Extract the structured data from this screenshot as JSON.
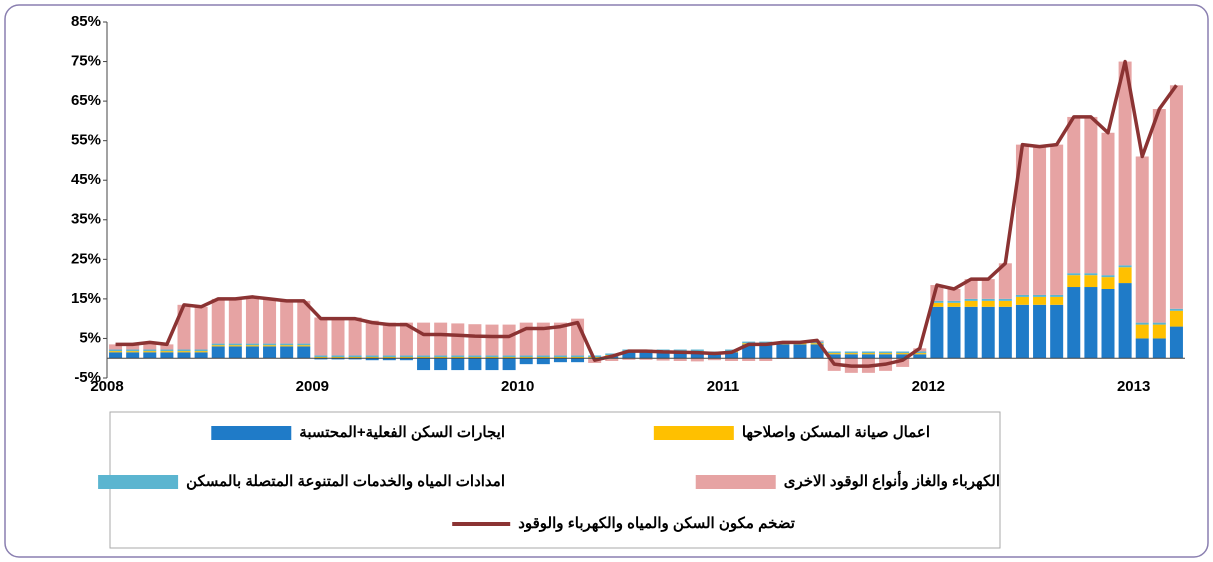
{
  "chart_data": {
    "type": "bar",
    "categories": [
      "2008",
      null,
      null,
      null,
      null,
      null,
      null,
      null,
      null,
      null,
      null,
      null,
      "2009",
      null,
      null,
      null,
      null,
      null,
      null,
      null,
      null,
      null,
      null,
      null,
      "2010",
      null,
      null,
      null,
      null,
      null,
      null,
      null,
      null,
      null,
      null,
      null,
      "2011",
      null,
      null,
      null,
      null,
      null,
      null,
      null,
      null,
      null,
      null,
      null,
      "2012",
      null,
      null,
      null,
      null,
      null,
      null,
      null,
      null,
      null,
      null,
      null,
      "2013",
      null,
      null
    ],
    "stacked": true,
    "ylim": [
      -5,
      85
    ],
    "yticks": [
      {
        "value": -5,
        "label": "-5%"
      },
      {
        "value": 5,
        "label": "5%"
      },
      {
        "value": 15,
        "label": "15%"
      },
      {
        "value": 25,
        "label": "25%"
      },
      {
        "value": 35,
        "label": "35%"
      },
      {
        "value": 45,
        "label": "45%"
      },
      {
        "value": 55,
        "label": "55%"
      },
      {
        "value": 65,
        "label": "65%"
      },
      {
        "value": 75,
        "label": "75%"
      },
      {
        "value": 85,
        "label": "85%"
      }
    ],
    "series": [
      {
        "name": "ايجارات السكن الفعلية+المحتسبة",
        "color": "#1f7bc8",
        "values": [
          1.5,
          1.5,
          1.5,
          1.5,
          1.5,
          1.5,
          3,
          3,
          3,
          3,
          3,
          3,
          -0.3,
          -0.3,
          -0.3,
          -0.5,
          -0.5,
          -0.5,
          -3,
          -3,
          -3,
          -3,
          -3,
          -3,
          -1.5,
          -1.5,
          -1,
          -1,
          0,
          0.5,
          1.5,
          1.5,
          1.5,
          1.5,
          1.5,
          1,
          1.5,
          3.5,
          3.5,
          3.5,
          3.5,
          3.5,
          1,
          1,
          1,
          1,
          1,
          1,
          13,
          13,
          13,
          13,
          13,
          13.5,
          13.5,
          13.5,
          18,
          18,
          17.5,
          19,
          5,
          5,
          8
        ]
      },
      {
        "name": "اعمال صيانة المسكن واصلاحها",
        "color": "#ffc000",
        "values": [
          0.3,
          0.3,
          0.3,
          0.3,
          0.3,
          0.3,
          0.3,
          0.3,
          0.3,
          0.3,
          0.3,
          0.3,
          0.3,
          0.3,
          0.3,
          0.3,
          0.3,
          0.3,
          0.3,
          0.3,
          0.3,
          0.3,
          0.3,
          0.3,
          0.3,
          0.3,
          0.3,
          0.3,
          0.3,
          0.3,
          0.3,
          0.3,
          0.3,
          0.3,
          0.3,
          0.3,
          0.3,
          0.3,
          0.3,
          0.3,
          0.3,
          0.3,
          0.3,
          0.3,
          0.3,
          0.3,
          0.3,
          0.3,
          1,
          1,
          1.5,
          1.5,
          1.5,
          2,
          2,
          2,
          3,
          3,
          3,
          4,
          3.5,
          3.5,
          4
        ]
      },
      {
        "name": "امدادات المياه والخدمات المتنوعة المتصلة بالمسكن",
        "color": "#5bb5d0",
        "values": [
          0.4,
          0.4,
          0.4,
          0.4,
          0.4,
          0.4,
          0.4,
          0.4,
          0.4,
          0.4,
          0.4,
          0.4,
          0.4,
          0.4,
          0.4,
          0.4,
          0.4,
          0.4,
          0.4,
          0.4,
          0.4,
          0.4,
          0.4,
          0.4,
          0.4,
          0.4,
          0.4,
          0.4,
          0.4,
          0.4,
          0.4,
          0.4,
          0.4,
          0.4,
          0.4,
          0.4,
          0.4,
          0.4,
          0.4,
          0.4,
          0.4,
          0.4,
          0.4,
          0.4,
          0.4,
          0.4,
          0.4,
          0.4,
          0.5,
          0.5,
          0.5,
          0.5,
          0.5,
          0.5,
          0.5,
          0.5,
          0.5,
          0.5,
          0.5,
          0.5,
          0.5,
          0.5,
          0.5
        ]
      },
      {
        "name": "الكهرباء والغاز وأنواع الوقود الاخرى",
        "color": "#e6a3a3",
        "values": [
          1.3,
          1.3,
          1.8,
          1.3,
          11.3,
          10.8,
          11.3,
          11.3,
          11.8,
          11.3,
          10.8,
          10.8,
          9.6,
          9.6,
          9.6,
          8.8,
          8.3,
          8.3,
          8.3,
          8.3,
          8.1,
          7.9,
          7.8,
          7.8,
          8.3,
          8.3,
          8.3,
          9.3,
          -1.2,
          -0.7,
          -0.4,
          -0.4,
          -0.6,
          -0.7,
          -0.8,
          -0.5,
          -0.7,
          -0.7,
          -0.7,
          -0.2,
          -0.2,
          0.3,
          -3.2,
          -3.7,
          -3.7,
          -3.2,
          -2.2,
          0.8,
          4,
          3,
          5,
          5,
          9,
          38,
          37.5,
          38,
          39.5,
          39.5,
          36,
          51.5,
          42,
          54,
          56.5
        ]
      },
      {
        "name": "تضخم مكون السكن والمياه والكهرباء والوقود",
        "color": "#8b3333",
        "type": "line",
        "values": [
          3.5,
          3.5,
          4,
          3.5,
          13.5,
          13,
          15,
          15,
          15.5,
          15,
          14.5,
          14.5,
          10,
          10,
          10,
          9,
          8.5,
          8.5,
          6,
          6,
          5.8,
          5.6,
          5.5,
          5.5,
          7.5,
          7.5,
          8,
          9,
          -0.5,
          0.5,
          1.8,
          1.8,
          1.6,
          1.5,
          1.4,
          1.2,
          1.5,
          3.5,
          3.5,
          4,
          4,
          4.5,
          -1.5,
          -2,
          -2,
          -1.5,
          -0.5,
          2.5,
          18.5,
          17.5,
          20,
          20,
          24,
          54,
          53.5,
          54,
          61,
          61,
          57,
          75,
          51,
          63,
          69
        ]
      }
    ]
  }
}
